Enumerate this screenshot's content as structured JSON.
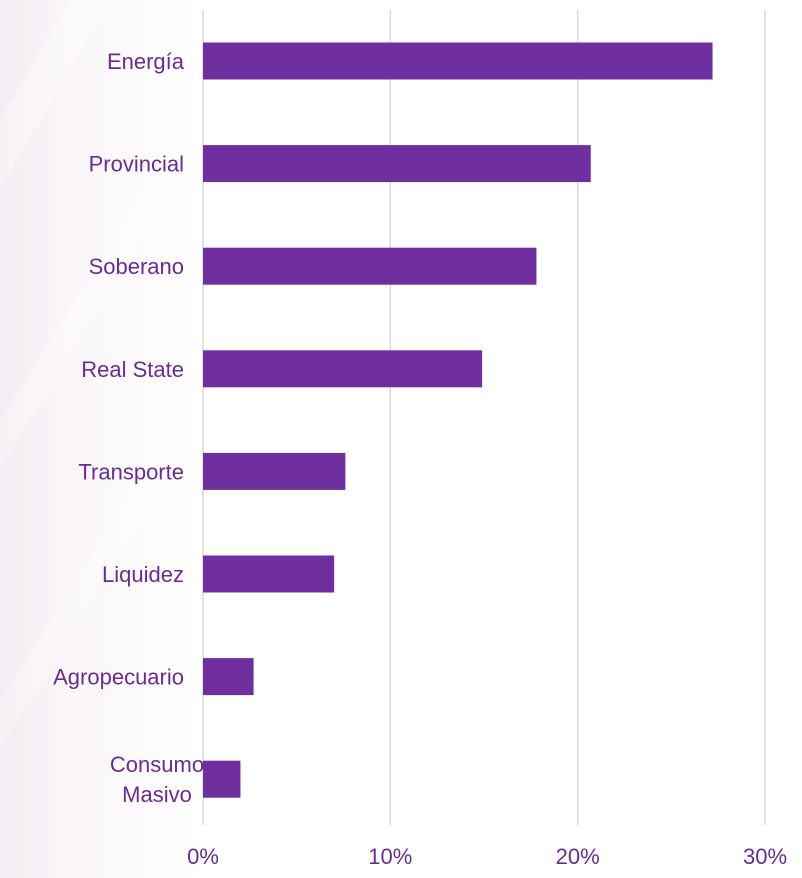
{
  "chart_data": {
    "type": "bar",
    "orientation": "horizontal",
    "categories": [
      "Energía",
      "Provincial",
      "Soberano",
      "Real State",
      "Transporte",
      "Liquidez",
      "Agropecuario",
      "Consumo Masivo"
    ],
    "category_lines": [
      [
        "Energía"
      ],
      [
        "Provincial"
      ],
      [
        "Soberano"
      ],
      [
        "Real State"
      ],
      [
        "Transporte"
      ],
      [
        "Liquidez"
      ],
      [
        "Agropecuario"
      ],
      [
        "Consumo",
        "Masivo"
      ]
    ],
    "values": [
      27.2,
      20.7,
      17.8,
      14.9,
      7.6,
      7.0,
      2.7,
      2.0
    ],
    "xlim": [
      0,
      30
    ],
    "xticks": [
      0,
      10,
      20,
      30
    ],
    "xtick_labels": [
      "0%",
      "10%",
      "20%",
      "30%"
    ],
    "title": "",
    "xlabel": "",
    "ylabel": "",
    "grid": "vertical",
    "legend": "none",
    "colors": {
      "bar": "#6f2f9f",
      "label": "#6b2c8f",
      "grid": "#d9d9d9"
    }
  }
}
